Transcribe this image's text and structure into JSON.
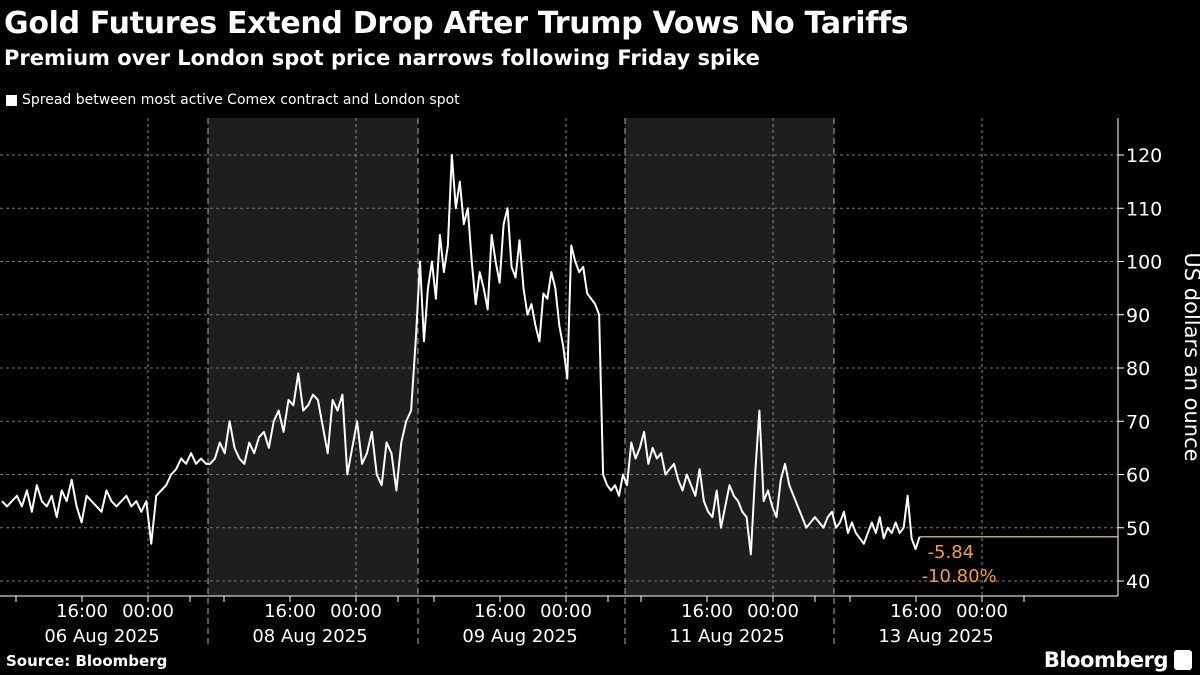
{
  "title": "Gold Futures Extend Drop After Trump Vows No Tariffs",
  "subtitle": "Premium over London spot price narrows following Friday spike",
  "footer": {
    "source": "Source: Bloomberg",
    "brand": "Bloomberg"
  },
  "chart_data": {
    "type": "line",
    "ylabel": "US dollars an ounce",
    "ylim": [
      37,
      127
    ],
    "yticks": [
      40,
      50,
      60,
      70,
      80,
      90,
      100,
      110,
      120
    ],
    "grid": true,
    "legend_placement": "top-left",
    "series": [
      {
        "name": "Spread between most active Comex contract and London spot",
        "color": "#ffffff"
      }
    ],
    "sessions": [
      {
        "date_label": "06 Aug 2025",
        "time_labels": [
          "16:00",
          "00:00"
        ],
        "shaded": false,
        "values": [
          55,
          54,
          55,
          56,
          54,
          57,
          53,
          58,
          55,
          54,
          56,
          52,
          57,
          55,
          59,
          54,
          51,
          56,
          55,
          54,
          53,
          57,
          55,
          54,
          55,
          56,
          54,
          55,
          53,
          55,
          47,
          56,
          57,
          58,
          60,
          61,
          63,
          62,
          64,
          62,
          63,
          62
        ]
      },
      {
        "date_label": "08 Aug 2025",
        "time_labels": [
          "16:00",
          "00:00"
        ],
        "shaded": true,
        "values": [
          62,
          63,
          66,
          64,
          70,
          65,
          63,
          62,
          66,
          64,
          67,
          68,
          65,
          70,
          72,
          68,
          74,
          73,
          79,
          72,
          73,
          75,
          74,
          69,
          64,
          74,
          72,
          75,
          60,
          65,
          70,
          62,
          64,
          68,
          60,
          58,
          66,
          64,
          57,
          66,
          70,
          72,
          86
        ]
      },
      {
        "date_label": "09 Aug 2025",
        "time_labels": [
          "16:00",
          "00:00"
        ],
        "shaded": false,
        "values": [
          100,
          85,
          95,
          100,
          93,
          105,
          98,
          103,
          120,
          110,
          115,
          107,
          110,
          100,
          92,
          98,
          95,
          91,
          105,
          100,
          96,
          107,
          110,
          99,
          97,
          104,
          95,
          90,
          92,
          88,
          85,
          94,
          93,
          98,
          95,
          88,
          84,
          78,
          103,
          100,
          98,
          99,
          94,
          93,
          92,
          90,
          60,
          58,
          57,
          58,
          56,
          60
        ]
      },
      {
        "date_label": "11 Aug 2025",
        "time_labels": [
          "16:00",
          "00:00"
        ],
        "shaded": true,
        "values": [
          58,
          66,
          63,
          65,
          68,
          62,
          65,
          63,
          64,
          60,
          61,
          62,
          59,
          57,
          60,
          58,
          56,
          61,
          55,
          53,
          52,
          57,
          50,
          54,
          58,
          56,
          55,
          53,
          52,
          45,
          60,
          72,
          55,
          57,
          54,
          52,
          59,
          62,
          58,
          56,
          54,
          52,
          50,
          51,
          52,
          51,
          50,
          52,
          53
        ]
      },
      {
        "date_label": "13 Aug 2025",
        "time_labels": [
          "16:00",
          "00:00"
        ],
        "shaded": false,
        "partial_fraction": 0.42,
        "values": [
          50,
          51,
          53,
          49,
          51,
          49,
          48,
          47,
          49,
          51,
          49,
          52,
          48,
          50,
          49,
          51,
          49,
          50,
          56,
          48,
          46,
          48.3
        ]
      }
    ],
    "last_value": 48.3,
    "annotations": {
      "change": "-5.84",
      "change_pct": "-10.80%",
      "color": "#f0a030"
    }
  }
}
